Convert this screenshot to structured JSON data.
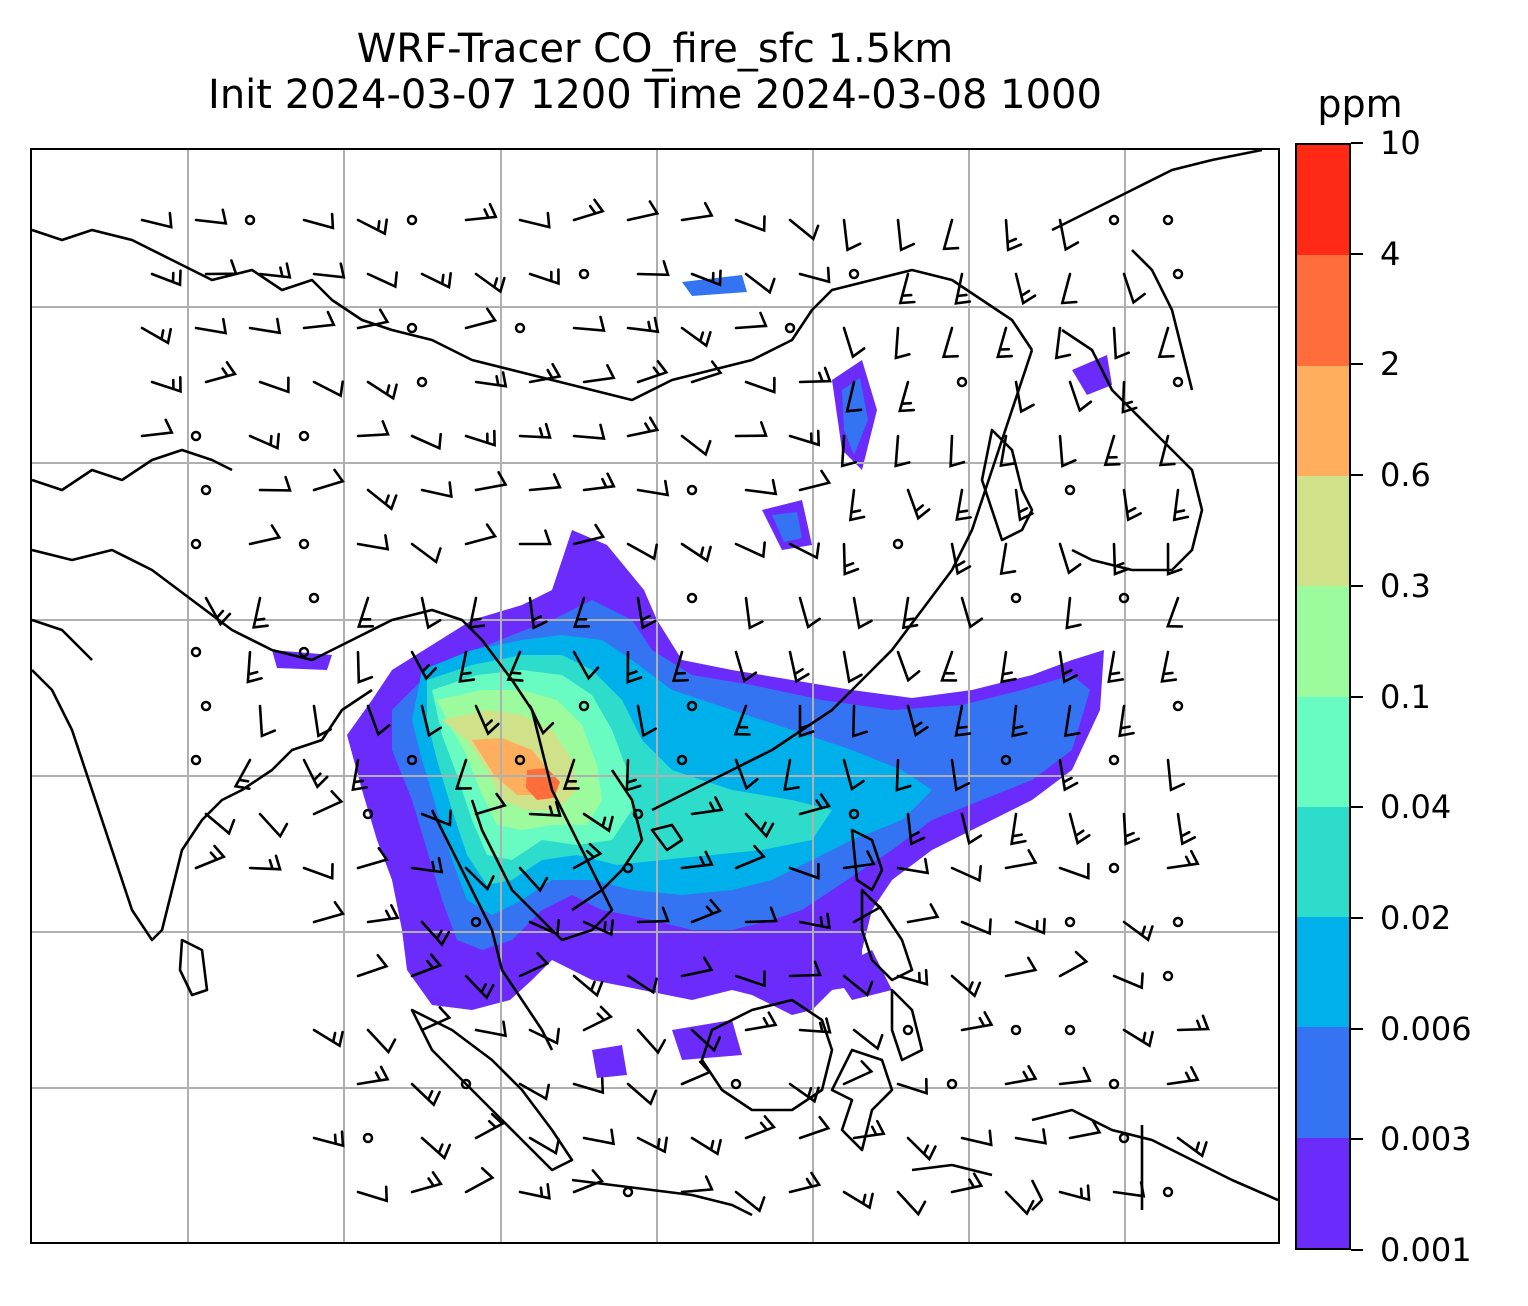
{
  "title": {
    "line1": "WRF-Tracer CO_fire_sfc 1.5km",
    "line2": "Init 2024-03-07 1200 Time 2024-03-08 1000"
  },
  "colorbar": {
    "unit": "ppm",
    "levels": [
      "0.001",
      "0.003",
      "0.006",
      "0.02",
      "0.04",
      "0.1",
      "0.3",
      "0.6",
      "2",
      "4",
      "10"
    ],
    "colors": [
      "#6a2bfb",
      "#3474f2",
      "#00b0ea",
      "#2ddccb",
      "#69fcc2",
      "#9cfb9c",
      "#cfe28a",
      "#ffae5e",
      "#ff6d3b",
      "#ff2a15"
    ]
  },
  "map": {
    "gridline_color": "#b0b0b0",
    "coastline_color": "#000000",
    "wind_barbs": "black barbs on regular grid",
    "calm_marker": "circle"
  }
}
